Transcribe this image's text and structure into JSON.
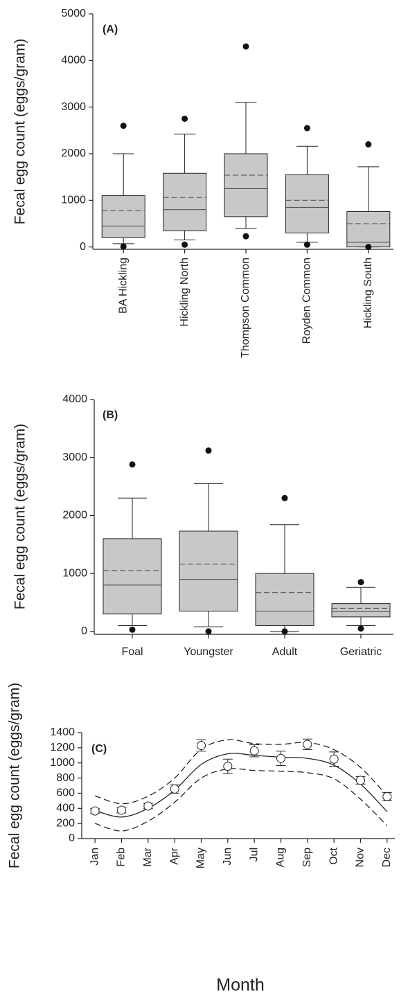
{
  "chart_data": [
    {
      "type": "box",
      "panel_label": "(A)",
      "y_label": "Fecal egg count (eggs/gram)",
      "categories": [
        "BA Hickling",
        "Hickling North",
        "Thompson Common",
        "Royden Common",
        "Hickling South"
      ],
      "boxes": [
        {
          "low": 70,
          "q1": 200,
          "median": 450,
          "mean": 780,
          "q3": 1100,
          "high": 2000,
          "outliers": [
            2600,
            10
          ]
        },
        {
          "low": 150,
          "q1": 350,
          "median": 800,
          "mean": 1060,
          "q3": 1580,
          "high": 2420,
          "outliers": [
            2750,
            50
          ]
        },
        {
          "low": 400,
          "q1": 650,
          "median": 1250,
          "mean": 1540,
          "q3": 2000,
          "high": 3100,
          "outliers": [
            4300,
            230
          ]
        },
        {
          "low": 100,
          "q1": 300,
          "median": 850,
          "mean": 1000,
          "q3": 1550,
          "high": 2160,
          "outliers": [
            2550,
            50
          ]
        },
        {
          "low": 0,
          "q1": 0,
          "median": 100,
          "mean": 500,
          "q3": 760,
          "high": 1720,
          "outliers": [
            2200,
            0
          ]
        }
      ],
      "color": "#c8c8c8",
      "ylim": [
        -50,
        5000
      ],
      "yticks": [
        0,
        1000,
        2000,
        3000,
        4000,
        5000
      ]
    },
    {
      "type": "box",
      "panel_label": "(B)",
      "y_label": "Fecal egg count (eggs/gram)",
      "categories": [
        "Foal",
        "Youngster",
        "Adult",
        "Geriatric"
      ],
      "boxes": [
        {
          "low": 100,
          "q1": 300,
          "median": 800,
          "mean": 1050,
          "q3": 1600,
          "high": 2300,
          "outliers": [
            2880,
            30
          ]
        },
        {
          "low": 80,
          "q1": 350,
          "median": 900,
          "mean": 1160,
          "q3": 1730,
          "high": 2550,
          "outliers": [
            3120,
            0
          ]
        },
        {
          "low": 0,
          "q1": 100,
          "median": 350,
          "mean": 670,
          "q3": 1000,
          "high": 1840,
          "outliers": [
            2300,
            0
          ]
        },
        {
          "low": 100,
          "q1": 250,
          "median": 340,
          "mean": 400,
          "q3": 480,
          "high": 760,
          "outliers": [
            850,
            50
          ]
        }
      ],
      "color": "#c8c8c8",
      "ylim": [
        -50,
        4000
      ],
      "yticks": [
        0,
        1000,
        2000,
        3000,
        4000
      ]
    },
    {
      "type": "line",
      "panel_label": "(C)",
      "y_label": "Fecal egg count (eggs/gram)",
      "x_label": "Month",
      "categories": [
        "Jan",
        "Feb",
        "Mar",
        "Apr",
        "May",
        "Jun",
        "Jul",
        "Aug",
        "Sep",
        "Oct",
        "Nov",
        "Dec"
      ],
      "points": {
        "values": [
          365,
          375,
          430,
          655,
          1230,
          955,
          1160,
          1060,
          1245,
          1050,
          770,
          555
        ],
        "errors": [
          30,
          35,
          35,
          55,
          75,
          95,
          80,
          95,
          70,
          95,
          50,
          55
        ]
      },
      "curves": [
        {
          "values": [
            370,
            285,
            400,
            640,
            980,
            1120,
            1100,
            1075,
            1060,
            970,
            720,
            355
          ],
          "dashed": false
        },
        {
          "values": [
            565,
            460,
            560,
            800,
            1180,
            1305,
            1255,
            1245,
            1270,
            1175,
            940,
            565
          ],
          "dashed": true
        },
        {
          "values": [
            200,
            100,
            230,
            480,
            800,
            920,
            900,
            890,
            870,
            790,
            520,
            170
          ],
          "dashed": true
        }
      ],
      "color": "#222222",
      "ylim": [
        0,
        1400
      ],
      "yticks": [
        0,
        200,
        400,
        600,
        800,
        1000,
        1200,
        1400
      ]
    }
  ]
}
